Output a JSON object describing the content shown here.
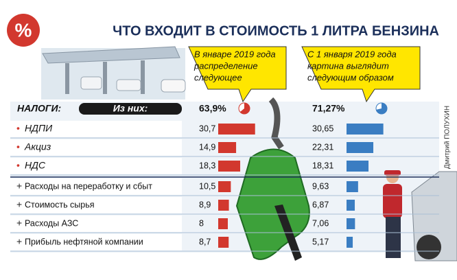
{
  "title": "ЧТО ВХОДИТ В СТОИМОСТЬ 1 ЛИТРА БЕНЗИНА",
  "badge": "%",
  "taxes_label": "НАЛОГИ:",
  "of_them": "Из них:",
  "credit": "Дмитрий ПОЛУХИН",
  "rows": [
    {
      "marker": "•",
      "label": "НДПИ"
    },
    {
      "marker": "•",
      "label": "Акциз"
    },
    {
      "marker": "•",
      "label": "НДС"
    },
    {
      "marker": "+",
      "label": "Расходы на переработку и сбыт"
    },
    {
      "marker": "+",
      "label": "Стоимость сырья"
    },
    {
      "marker": "+",
      "label": "Расходы АЗС"
    },
    {
      "marker": "+",
      "label": "Прибыль нефтяной компании"
    }
  ],
  "columns": [
    {
      "callout": [
        "В январе 2019 года",
        "распределение",
        "следующее"
      ],
      "total": 63.9,
      "total_label": "63,9%",
      "color": "#d2382e",
      "values": [
        30.7,
        14.9,
        18.3,
        10.5,
        8.9,
        8,
        8.7
      ],
      "value_labels": [
        "30,7",
        "14,9",
        "18,3",
        "10,5",
        "8,9",
        "8",
        "8,7"
      ]
    },
    {
      "callout": [
        "С 1 января 2019 года",
        "картина выглядит",
        "следующим образом"
      ],
      "total": 71.27,
      "total_label": "71,27%",
      "color": "#3a7dc2",
      "values": [
        30.65,
        22.31,
        18.31,
        9.63,
        6.87,
        7.06,
        5.17
      ],
      "value_labels": [
        "30,65",
        "22,31",
        "18,31",
        "9,63",
        "6,87",
        "7,06",
        "5,17"
      ]
    }
  ]
}
